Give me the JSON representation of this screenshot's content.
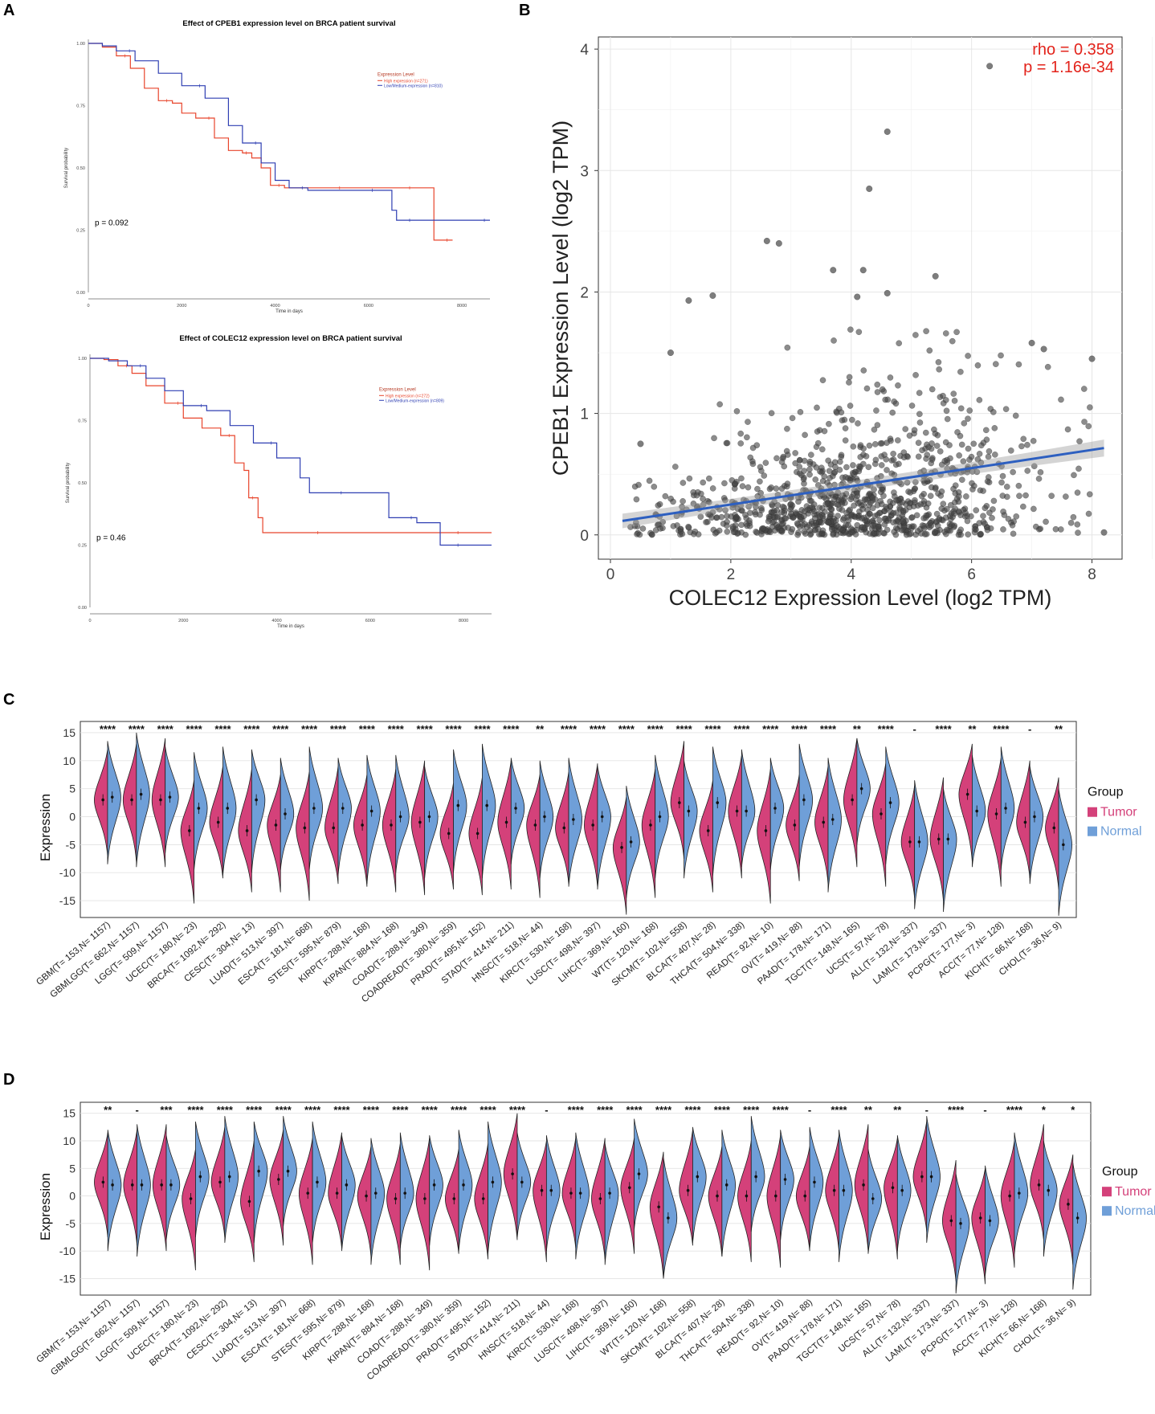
{
  "panels": {
    "a": "A",
    "b": "B",
    "c": "C",
    "d": "D"
  },
  "chart_data": [
    {
      "id": "km1",
      "type": "line",
      "title": "Effect of CPEB1 expression level on BRCA patient survival",
      "xlabel": "Time in days",
      "ylabel": "Survival probability",
      "xlim": [
        0,
        8600
      ],
      "ylim": [
        0,
        1
      ],
      "xticks": [
        0,
        2000,
        4000,
        6000,
        8000
      ],
      "yticks": [
        "0.00",
        "0.25",
        "0.50",
        "0.75",
        "1.00"
      ],
      "legend_title": "Expression Level",
      "pvalue": "p = 0.092",
      "series": [
        {
          "name": "High expression (n=271)",
          "color": "#e8452c",
          "x": [
            0,
            300,
            600,
            900,
            1200,
            1500,
            1800,
            2000,
            2300,
            2700,
            3000,
            3300,
            3500,
            3700,
            3900,
            4200,
            4600,
            5000,
            5500,
            6000,
            6500,
            7000,
            7400,
            7400,
            7800
          ],
          "y": [
            1.0,
            0.985,
            0.95,
            0.9,
            0.82,
            0.77,
            0.76,
            0.72,
            0.7,
            0.62,
            0.57,
            0.56,
            0.54,
            0.5,
            0.43,
            0.42,
            0.42,
            0.42,
            0.42,
            0.42,
            0.42,
            0.42,
            0.42,
            0.21,
            0.21
          ]
        },
        {
          "name": "Low/Medium-expression (n=810)",
          "color": "#2f3fb2",
          "x": [
            0,
            300,
            600,
            1000,
            1500,
            2000,
            2500,
            3000,
            3300,
            3700,
            4000,
            4300,
            4700,
            5200,
            5800,
            6200,
            6500,
            6600,
            7000,
            7500,
            8000,
            8600
          ],
          "y": [
            1.0,
            0.99,
            0.97,
            0.93,
            0.88,
            0.83,
            0.78,
            0.67,
            0.6,
            0.52,
            0.45,
            0.42,
            0.41,
            0.41,
            0.41,
            0.41,
            0.33,
            0.29,
            0.29,
            0.29,
            0.29,
            0.29
          ]
        }
      ]
    },
    {
      "id": "km2",
      "type": "line",
      "title": "Effect of COLEC12 expression level on BRCA patient survival",
      "xlabel": "Time in days",
      "ylabel": "Survival probability",
      "xlim": [
        0,
        8600
      ],
      "ylim": [
        0,
        1
      ],
      "xticks": [
        0,
        2000,
        4000,
        6000,
        8000
      ],
      "yticks": [
        "0.00",
        "0.25",
        "0.50",
        "0.75",
        "1.00"
      ],
      "legend_title": "Expression Level",
      "pvalue": "p = 0.46",
      "series": [
        {
          "name": "High expression (n=272)",
          "color": "#e8452c",
          "x": [
            0,
            300,
            600,
            900,
            1200,
            1600,
            2000,
            2400,
            2800,
            3100,
            3300,
            3400,
            3600,
            3700,
            4000,
            5000,
            6000,
            7000,
            8000,
            8600
          ],
          "y": [
            1.0,
            0.995,
            0.97,
            0.94,
            0.89,
            0.82,
            0.76,
            0.72,
            0.69,
            0.58,
            0.55,
            0.44,
            0.36,
            0.3,
            0.3,
            0.3,
            0.3,
            0.3,
            0.3,
            0.3
          ]
        },
        {
          "name": "Low/Medium-expression (n=809)",
          "color": "#2f3fb2",
          "x": [
            0,
            400,
            800,
            1200,
            1600,
            2000,
            2500,
            3000,
            3500,
            4000,
            4500,
            4700,
            5500,
            6000,
            6400,
            7000,
            7300,
            7500,
            8000,
            8600
          ],
          "y": [
            1.0,
            0.99,
            0.97,
            0.92,
            0.87,
            0.81,
            0.79,
            0.73,
            0.66,
            0.6,
            0.52,
            0.46,
            0.46,
            0.46,
            0.36,
            0.34,
            0.34,
            0.25,
            0.25,
            0.25
          ]
        }
      ]
    },
    {
      "id": "scatter",
      "type": "scatter",
      "xlabel": "COLEC12 Expression Level (log2 TPM)",
      "ylabel": "CPEB1 Expression Level (log2 TPM)",
      "xlim": [
        -0.2,
        8.5
      ],
      "ylim": [
        -0.2,
        4.1
      ],
      "xticks": [
        "0",
        "2",
        "4",
        "6",
        "8"
      ],
      "yticks": [
        "0",
        "1",
        "2",
        "3",
        "4"
      ],
      "rho": "rho = 0.358",
      "p": "p = 1.16e-34",
      "fit": {
        "intercept": 0.1,
        "slope": 0.075,
        "x_range": [
          0.2,
          8.2
        ]
      },
      "highlight_points": {
        "x": [
          6.3,
          4.6,
          4.3,
          2.6,
          2.8,
          4.2,
          5.4,
          3.7,
          4.1,
          4.6,
          1.3,
          1.7,
          1.0,
          7.2,
          7.0,
          8.0,
          0.5,
          8.2
        ],
        "y": [
          3.86,
          3.32,
          2.85,
          2.42,
          2.4,
          2.18,
          2.13,
          2.18,
          1.96,
          1.99,
          1.93,
          1.97,
          1.5,
          1.53,
          1.58,
          1.45,
          0.75,
          0.02
        ]
      },
      "n_points": 1080
    },
    {
      "id": "violin_c",
      "type": "violin",
      "ylabel": "Expression",
      "yticks": [
        "15",
        "10",
        "5",
        "0",
        "-5",
        "-10",
        "-15"
      ],
      "legend_title": "Group",
      "legend": [
        {
          "name": "Tumor",
          "color": "#d4417a"
        },
        {
          "name": "Normal",
          "color": "#6f9fd8"
        }
      ],
      "categories": [
        "GBM(T= 153,N= 1157)",
        "GBMLGG(T= 662,N= 1157)",
        "LGG(T= 509,N= 1157)",
        "UCEC(T= 180,N= 23)",
        "BRCA(T= 1092,N= 292)",
        "CESC(T= 304,N= 13)",
        "LUAD(T= 513,N= 397)",
        "ESCA(T= 181,N= 668)",
        "STES(T= 595,N= 879)",
        "KIRP(T= 288,N= 168)",
        "KIPAN(T= 884,N= 168)",
        "COAD(T= 288,N= 349)",
        "COADREAD(T= 380,N= 359)",
        "PRAD(T= 495,N= 152)",
        "STAD(T= 414,N= 211)",
        "HNSC(T= 518,N= 44)",
        "KIRC(T= 530,N= 168)",
        "LUSC(T= 498,N= 397)",
        "LIHC(T= 369,N= 160)",
        "WT(T= 120,N= 168)",
        "SKCM(T= 102,N= 558)",
        "BLCA(T= 407,N= 28)",
        "THCA(T= 504,N= 338)",
        "READ(T= 92,N= 10)",
        "OV(T= 419,N= 88)",
        "PAAD(T= 178,N= 171)",
        "TGCT(T= 148,N= 165)",
        "UCS(T= 57,N= 78)",
        "ALL(T= 132,N= 337)",
        "LAML(T= 173,N= 337)",
        "PCPG(T= 177,N= 3)",
        "ACC(T= 77,N= 128)",
        "KICH(T= 66,N= 168)",
        "CHOL(T= 36,N= 9)"
      ],
      "significance": [
        "****",
        "****",
        "****",
        "****",
        "****",
        "****",
        "****",
        "****",
        "****",
        "****",
        "****",
        "****",
        "****",
        "****",
        "****",
        "**",
        "****",
        "****",
        "****",
        "****",
        "****",
        "****",
        "****",
        "****",
        "****",
        "****",
        "**",
        "****",
        "-",
        "****",
        "**",
        "****",
        "-",
        "**"
      ],
      "tumor_median": [
        3,
        3,
        3,
        -2.5,
        -1,
        -2.5,
        -1.5,
        -2,
        -2,
        -1.5,
        -1.5,
        -1,
        -3,
        -3,
        -1,
        -1.5,
        -2,
        -1.5,
        -5.5,
        -1.5,
        2.5,
        -2.5,
        1,
        -2.5,
        -1.5,
        -1,
        3,
        0.5,
        -4.5,
        -4,
        4,
        0.5,
        -1,
        -2
      ],
      "normal_median": [
        3.5,
        4,
        3.5,
        1.5,
        1.5,
        3,
        0.5,
        1.5,
        1.5,
        1,
        0,
        0,
        2,
        2,
        1.5,
        0,
        -0.5,
        0,
        -4.5,
        0,
        1,
        2.5,
        1,
        1.5,
        3,
        -0.5,
        5,
        2.5,
        -4.5,
        -4,
        1,
        1.5,
        0,
        -5
      ]
    },
    {
      "id": "violin_d",
      "type": "violin",
      "ylabel": "Expression",
      "yticks": [
        "15",
        "10",
        "5",
        "0",
        "-5",
        "-10",
        "-15"
      ],
      "legend_title": "Group",
      "legend": [
        {
          "name": "Tumor",
          "color": "#d4417a"
        },
        {
          "name": "Normal",
          "color": "#6f9fd8"
        }
      ],
      "categories": [
        "GBM(T= 153,N= 1157)",
        "GBMLGG(T= 662,N= 1157)",
        "LGG(T= 509,N= 1157)",
        "UCEC(T= 180,N= 23)",
        "BRCA(T= 1092,N= 292)",
        "CESC(T= 304,N= 13)",
        "LUAD(T= 513,N= 397)",
        "ESCA(T= 181,N= 668)",
        "STES(T= 595,N= 879)",
        "KIRP(T= 288,N= 168)",
        "KIPAN(T= 884,N= 168)",
        "COAD(T= 288,N= 349)",
        "COADREAD(T= 380,N= 359)",
        "PRAD(T= 495,N= 152)",
        "STAD(T= 414,N= 211)",
        "HNSC(T= 518,N= 44)",
        "KIRC(T= 530,N= 168)",
        "LUSC(T= 498,N= 397)",
        "LIHC(T= 369,N= 160)",
        "WT(T= 120,N= 168)",
        "SKCM(T= 102,N= 558)",
        "BLCA(T= 407,N= 28)",
        "THCA(T= 504,N= 338)",
        "READ(T= 92,N= 10)",
        "OV(T= 419,N= 88)",
        "PAAD(T= 178,N= 171)",
        "TGCT(T= 148,N= 165)",
        "UCS(T= 57,N= 78)",
        "ALL(T= 132,N= 337)",
        "LAML(T= 173,N= 337)",
        "PCPG(T= 177,N= 3)",
        "ACC(T= 77,N= 128)",
        "KICH(T= 66,N= 168)",
        "CHOL(T= 36,N= 9)"
      ],
      "significance": [
        "**",
        "-",
        "***",
        "****",
        "****",
        "****",
        "****",
        "****",
        "****",
        "****",
        "****",
        "****",
        "****",
        "****",
        "****",
        "-",
        "****",
        "****",
        "****",
        "****",
        "****",
        "****",
        "****",
        "****",
        "-",
        "****",
        "**",
        "**",
        "-",
        "****",
        "-",
        "****",
        "*",
        "*"
      ],
      "tumor_median": [
        2.5,
        2,
        2,
        -0.5,
        2.5,
        -1,
        3,
        0.5,
        0.5,
        0,
        -0.5,
        -0.5,
        -0.5,
        -0.5,
        4,
        1,
        0.5,
        -0.5,
        1.5,
        -2,
        1,
        0,
        0,
        0,
        0,
        1,
        2,
        1.5,
        3.5,
        -4.5,
        -4,
        0,
        2,
        -1.5
      ],
      "normal_median": [
        2,
        2,
        2,
        3.5,
        3.5,
        4.5,
        4.5,
        2.5,
        2,
        0.5,
        0.5,
        2,
        2,
        2.5,
        2.5,
        1,
        0.5,
        0.5,
        4,
        -4,
        3.5,
        2,
        3.5,
        3,
        2.5,
        1,
        -0.5,
        1,
        3.5,
        -5,
        -4.5,
        0.5,
        1,
        -4
      ]
    }
  ]
}
